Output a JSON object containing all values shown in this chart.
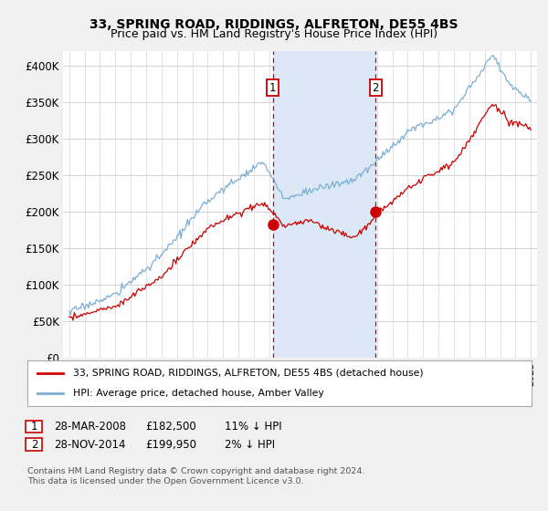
{
  "title": "33, SPRING ROAD, RIDDINGS, ALFRETON, DE55 4BS",
  "subtitle": "Price paid vs. HM Land Registry's House Price Index (HPI)",
  "ylim": [
    0,
    420000
  ],
  "yticks": [
    0,
    50000,
    100000,
    150000,
    200000,
    250000,
    300000,
    350000,
    400000
  ],
  "ytick_labels": [
    "£0",
    "£50K",
    "£100K",
    "£150K",
    "£200K",
    "£250K",
    "£300K",
    "£350K",
    "£400K"
  ],
  "sale1_x": 2008.22,
  "sale1_price": 182500,
  "sale2_x": 2014.91,
  "sale2_price": 199950,
  "sale_color": "#cc0000",
  "hpi_color": "#7bafd4",
  "highlight_color": "#dce8f5",
  "legend_sale_label": "33, SPRING ROAD, RIDDINGS, ALFRETON, DE55 4BS (detached house)",
  "legend_hpi_label": "HPI: Average price, detached house, Amber Valley",
  "copyright": "Contains HM Land Registry data © Crown copyright and database right 2024.\nThis data is licensed under the Open Government Licence v3.0.",
  "background_color": "#f0f0f0",
  "plot_bg_color": "#ffffff",
  "grid_color": "#cccccc",
  "title_fontsize": 10,
  "subtitle_fontsize": 9
}
